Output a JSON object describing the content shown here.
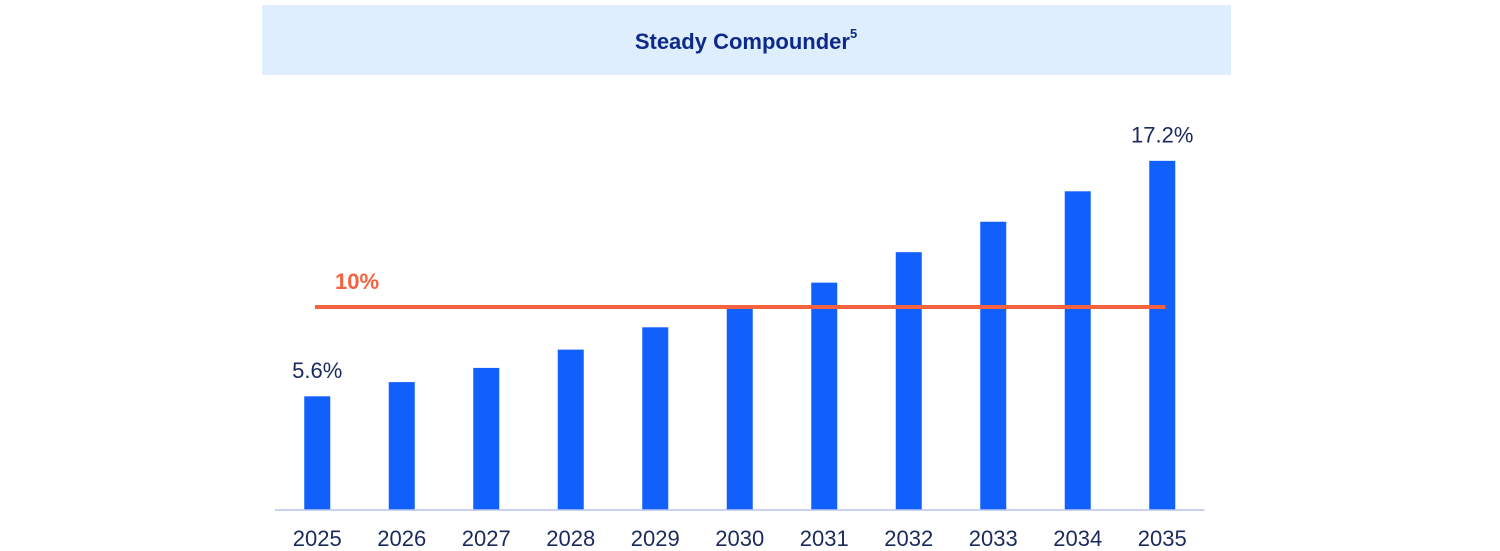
{
  "chart_data": {
    "type": "bar",
    "title": "Steady Compounder",
    "title_note": "5",
    "categories": [
      "2025",
      "2026",
      "2027",
      "2028",
      "2029",
      "2030",
      "2031",
      "2032",
      "2033",
      "2034",
      "2035"
    ],
    "values": [
      5.6,
      6.3,
      7.0,
      7.9,
      9.0,
      10.0,
      11.2,
      12.7,
      14.2,
      15.7,
      17.2
    ],
    "value_labels": [
      "5.6%",
      null,
      null,
      null,
      null,
      null,
      null,
      null,
      null,
      null,
      "17.2%"
    ],
    "color": "#1160fb",
    "ylim": [
      0,
      20
    ],
    "reference_line": {
      "value": 10,
      "label": "10%",
      "color": "#f4623f"
    }
  }
}
